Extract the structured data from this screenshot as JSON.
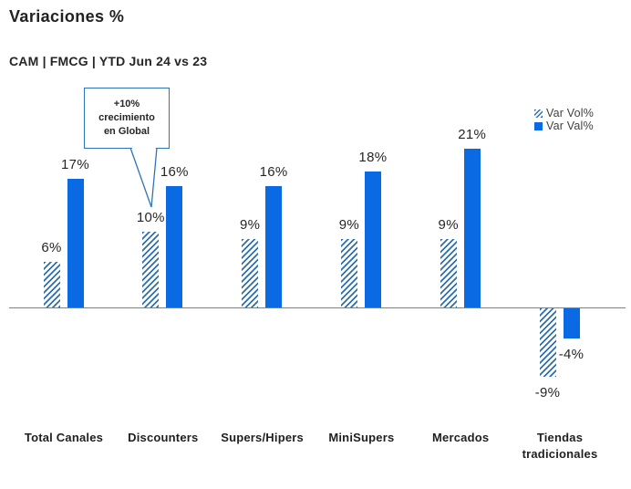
{
  "chart_data": {
    "type": "bar",
    "title": "Variaciones %",
    "subtitle": "CAM | FMCG | YTD Jun 24 vs 23",
    "categories": [
      "Total Canales",
      "Discounters",
      "Supers/Hipers",
      "MiniSupers",
      "Mercados",
      "Tiendas tradicionales"
    ],
    "series": [
      {
        "name": "Var Vol%",
        "style": "hatched",
        "values": [
          6,
          10,
          9,
          9,
          9,
          -9
        ]
      },
      {
        "name": "Var Val%",
        "style": "solid",
        "values": [
          17,
          16,
          16,
          18,
          21,
          -4
        ]
      }
    ],
    "value_suffix": "%",
    "ylim": [
      -12,
      24
    ],
    "grid": false,
    "legend_position": "top-right",
    "annotation": {
      "text": "+10% crecimiento en Global",
      "lines": [
        "+10%",
        "crecimiento",
        "en Global"
      ],
      "target_category": "Discounters",
      "target_series": "Var Vol%"
    },
    "colors": {
      "solid_bar": "#0a6ae4",
      "hatch_bar": "#2e6fad",
      "axis_line": "#808080",
      "label_text": "#262626",
      "callout_border": "#2e75b5"
    }
  }
}
